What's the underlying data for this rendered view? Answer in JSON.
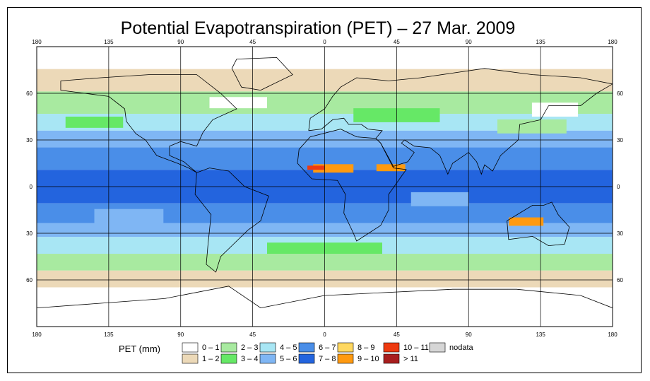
{
  "map": {
    "title": "Potential Evapotranspiration (PET) – 27 Mar. 2009",
    "longitude_labels": [
      "180",
      "135",
      "90",
      "45",
      "0",
      "45",
      "90",
      "135",
      "180"
    ],
    "latitude_labels": [
      "60",
      "30",
      "0",
      "30",
      "60"
    ],
    "legend_title": "PET (mm)",
    "legend": [
      {
        "label": "0 – 1",
        "color": "#ffffff"
      },
      {
        "label": "1 – 2",
        "color": "#ecd9b8"
      },
      {
        "label": "2 – 3",
        "color": "#a8eaa0"
      },
      {
        "label": "3 – 4",
        "color": "#66e866"
      },
      {
        "label": "4 – 5",
        "color": "#a8e6f4"
      },
      {
        "label": "5 – 6",
        "color": "#7fb6f4"
      },
      {
        "label": "6 – 7",
        "color": "#4a8ee8"
      },
      {
        "label": "7 – 8",
        "color": "#2364de"
      },
      {
        "label": "8 – 9",
        "color": "#ffd860"
      },
      {
        "label": "9 – 10",
        "color": "#ff9a10"
      },
      {
        "label": "10 – 11",
        "color": "#ee3a10"
      },
      {
        "label": "> 11",
        "color": "#a81e1e"
      },
      {
        "label": "nodata",
        "color": "#d6d6d6"
      }
    ]
  }
}
